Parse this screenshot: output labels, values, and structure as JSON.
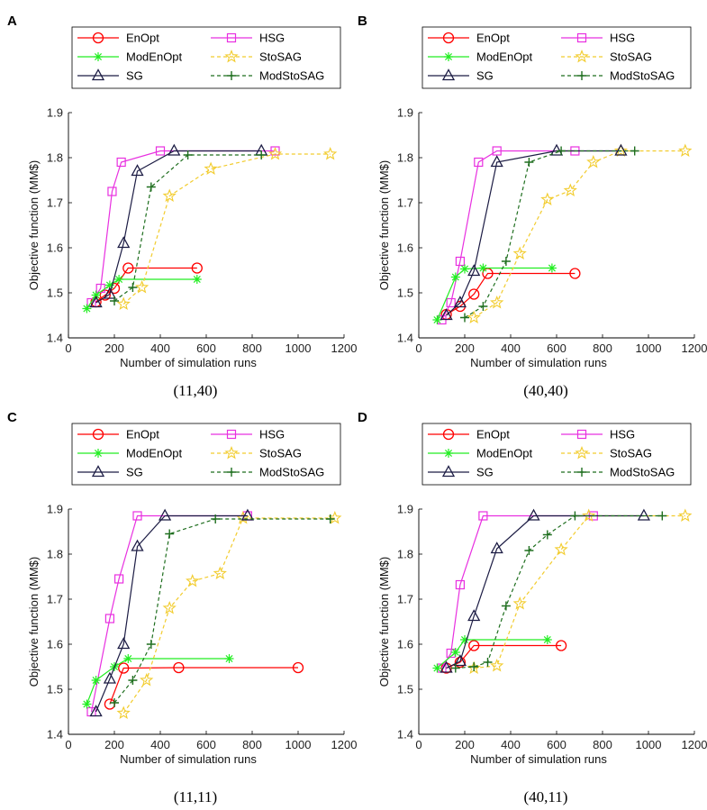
{
  "colors": {
    "EnOpt": "#ff0000",
    "HSG": "#e830e0",
    "ModEnOpt": "#22ee22",
    "StoSAG": "#f2cc2e",
    "SG": "#1c1c44",
    "ModStoSAG": "#1e6e1e"
  },
  "chart_data": [
    {
      "type": "line",
      "panel": "A",
      "caption": "(11,40)",
      "xlabel": "Number of simulation runs",
      "ylabel": "Objective function (MM$)",
      "xlim": [
        0,
        1200
      ],
      "ylim": [
        1.4,
        1.9
      ],
      "xticks": [
        "0",
        "200",
        "400",
        "600",
        "800",
        "1000",
        "1200"
      ],
      "yticks": [
        "1.4",
        "1.5",
        "1.6",
        "1.7",
        "1.8",
        "1.9"
      ],
      "grid": false,
      "legend": [
        "EnOpt",
        "HSG",
        "ModEnOpt",
        "StoSAG",
        "SG",
        "ModStoSAG"
      ],
      "series": [
        {
          "name": "EnOpt",
          "x": [
            120,
            160,
            200,
            260,
            560
          ],
          "y": [
            1.48,
            1.495,
            1.51,
            1.555,
            1.555
          ]
        },
        {
          "name": "HSG",
          "x": [
            100,
            140,
            190,
            230,
            400,
            900
          ],
          "y": [
            1.478,
            1.51,
            1.725,
            1.79,
            1.815,
            1.815
          ]
        },
        {
          "name": "ModEnOpt",
          "x": [
            80,
            120,
            180,
            220,
            560
          ],
          "y": [
            1.465,
            1.495,
            1.517,
            1.53,
            1.53
          ]
        },
        {
          "name": "StoSAG",
          "x": [
            240,
            320,
            440,
            620,
            900,
            1140
          ],
          "y": [
            1.475,
            1.512,
            1.715,
            1.775,
            1.808,
            1.808
          ]
        },
        {
          "name": "SG",
          "x": [
            120,
            180,
            240,
            300,
            460,
            840
          ],
          "y": [
            1.478,
            1.497,
            1.61,
            1.77,
            1.815,
            1.815
          ]
        },
        {
          "name": "ModStoSAG",
          "x": [
            200,
            280,
            360,
            520,
            840
          ],
          "y": [
            1.482,
            1.512,
            1.735,
            1.806,
            1.806
          ]
        }
      ]
    },
    {
      "type": "line",
      "panel": "B",
      "caption": "(40,40)",
      "xlabel": "Number of simulation runs",
      "ylabel": "Objective function (MM$)",
      "xlim": [
        0,
        1200
      ],
      "ylim": [
        1.4,
        1.9
      ],
      "xticks": [
        "0",
        "200",
        "400",
        "600",
        "800",
        "1000",
        "1200"
      ],
      "yticks": [
        "1.4",
        "1.5",
        "1.6",
        "1.7",
        "1.8",
        "1.9"
      ],
      "grid": false,
      "legend": [
        "EnOpt",
        "HSG",
        "ModEnOpt",
        "StoSAG",
        "SG",
        "ModStoSAG"
      ],
      "series": [
        {
          "name": "EnOpt",
          "x": [
            120,
            180,
            240,
            300,
            680
          ],
          "y": [
            1.452,
            1.47,
            1.497,
            1.543,
            1.543
          ]
        },
        {
          "name": "HSG",
          "x": [
            100,
            140,
            180,
            260,
            340,
            680
          ],
          "y": [
            1.44,
            1.478,
            1.57,
            1.79,
            1.815,
            1.815
          ]
        },
        {
          "name": "ModEnOpt",
          "x": [
            80,
            160,
            200,
            280,
            580
          ],
          "y": [
            1.44,
            1.535,
            1.553,
            1.555,
            1.555
          ]
        },
        {
          "name": "StoSAG",
          "x": [
            240,
            340,
            440,
            560,
            660,
            760,
            880,
            1160
          ],
          "y": [
            1.445,
            1.478,
            1.587,
            1.707,
            1.727,
            1.79,
            1.815,
            1.815
          ]
        },
        {
          "name": "SG",
          "x": [
            120,
            180,
            240,
            340,
            600,
            880
          ],
          "y": [
            1.45,
            1.478,
            1.548,
            1.79,
            1.815,
            1.815
          ]
        },
        {
          "name": "ModStoSAG",
          "x": [
            200,
            280,
            380,
            480,
            620,
            940
          ],
          "y": [
            1.445,
            1.47,
            1.57,
            1.79,
            1.815,
            1.815
          ]
        }
      ]
    },
    {
      "type": "line",
      "panel": "C",
      "caption": "(11,11)",
      "xlabel": "Number of simulation runs",
      "ylabel": "Objective function (MM$)",
      "xlim": [
        0,
        1200
      ],
      "ylim": [
        1.4,
        1.9
      ],
      "xticks": [
        "0",
        "200",
        "400",
        "600",
        "800",
        "1000",
        "1200"
      ],
      "yticks": [
        "1.4",
        "1.5",
        "1.6",
        "1.7",
        "1.8",
        "1.9"
      ],
      "grid": false,
      "legend": [
        "EnOpt",
        "HSG",
        "ModEnOpt",
        "StoSAG",
        "SG",
        "ModStoSAG"
      ],
      "series": [
        {
          "name": "EnOpt",
          "x": [
            180,
            240,
            480,
            1000
          ],
          "y": [
            1.467,
            1.547,
            1.548,
            1.548
          ]
        },
        {
          "name": "HSG",
          "x": [
            100,
            180,
            220,
            300,
            780
          ],
          "y": [
            1.45,
            1.657,
            1.745,
            1.885,
            1.885
          ]
        },
        {
          "name": "ModEnOpt",
          "x": [
            80,
            120,
            200,
            260,
            700
          ],
          "y": [
            1.467,
            1.52,
            1.55,
            1.568,
            1.568
          ]
        },
        {
          "name": "StoSAG",
          "x": [
            240,
            340,
            440,
            540,
            660,
            760,
            1160
          ],
          "y": [
            1.447,
            1.52,
            1.68,
            1.74,
            1.757,
            1.88,
            1.88
          ]
        },
        {
          "name": "SG",
          "x": [
            120,
            180,
            240,
            300,
            420,
            780
          ],
          "y": [
            1.45,
            1.523,
            1.6,
            1.817,
            1.885,
            1.885
          ]
        },
        {
          "name": "ModStoSAG",
          "x": [
            200,
            280,
            360,
            440,
            640,
            1140
          ],
          "y": [
            1.47,
            1.52,
            1.6,
            1.845,
            1.878,
            1.878
          ]
        }
      ]
    },
    {
      "type": "line",
      "panel": "D",
      "caption": "(40,11)",
      "xlabel": "Number of simulation runs",
      "ylabel": "Objective function (MM$)",
      "xlim": [
        0,
        1200
      ],
      "ylim": [
        1.4,
        1.9
      ],
      "xticks": [
        "0",
        "200",
        "400",
        "600",
        "800",
        "1000",
        "1200"
      ],
      "yticks": [
        "1.4",
        "1.5",
        "1.6",
        "1.7",
        "1.8",
        "1.9"
      ],
      "grid": false,
      "legend": [
        "EnOpt",
        "HSG",
        "ModEnOpt",
        "StoSAG",
        "SG",
        "ModStoSAG"
      ],
      "series": [
        {
          "name": "EnOpt",
          "x": [
            120,
            180,
            240,
            620
          ],
          "y": [
            1.547,
            1.56,
            1.597,
            1.597
          ]
        },
        {
          "name": "HSG",
          "x": [
            100,
            140,
            180,
            280,
            760
          ],
          "y": [
            1.547,
            1.58,
            1.732,
            1.885,
            1.885
          ]
        },
        {
          "name": "ModEnOpt",
          "x": [
            80,
            160,
            200,
            560
          ],
          "y": [
            1.547,
            1.582,
            1.61,
            1.61
          ]
        },
        {
          "name": "StoSAG",
          "x": [
            240,
            340,
            440,
            620,
            740,
            1160
          ],
          "y": [
            1.547,
            1.552,
            1.69,
            1.81,
            1.885,
            1.885
          ]
        },
        {
          "name": "SG",
          "x": [
            120,
            180,
            240,
            340,
            500,
            980
          ],
          "y": [
            1.547,
            1.562,
            1.662,
            1.812,
            1.885,
            1.885
          ]
        },
        {
          "name": "ModStoSAG",
          "x": [
            160,
            240,
            300,
            380,
            480,
            560,
            680,
            1060
          ],
          "y": [
            1.547,
            1.55,
            1.56,
            1.685,
            1.808,
            1.843,
            1.885,
            1.885
          ]
        }
      ]
    }
  ]
}
